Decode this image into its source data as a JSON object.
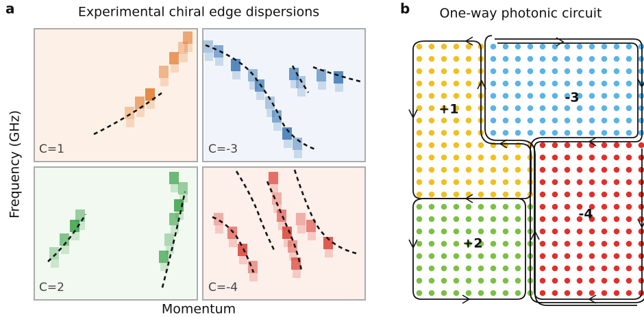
{
  "panel_a": {
    "label": "a",
    "title": "Experimental chiral edge dispersions",
    "y_axis_label": "Frequency (GHz)",
    "x_axis_label": "Momentum",
    "panels": [
      {
        "label": "C=1"
      },
      {
        "label": "C=-3"
      },
      {
        "label": "C=2"
      },
      {
        "label": "C=-4"
      }
    ]
  },
  "panel_b": {
    "label": "b",
    "title": "One-way photonic circuit",
    "regions": [
      {
        "label": "+1"
      },
      {
        "label": "-3"
      },
      {
        "label": "+2"
      },
      {
        "label": "-4"
      }
    ]
  }
}
